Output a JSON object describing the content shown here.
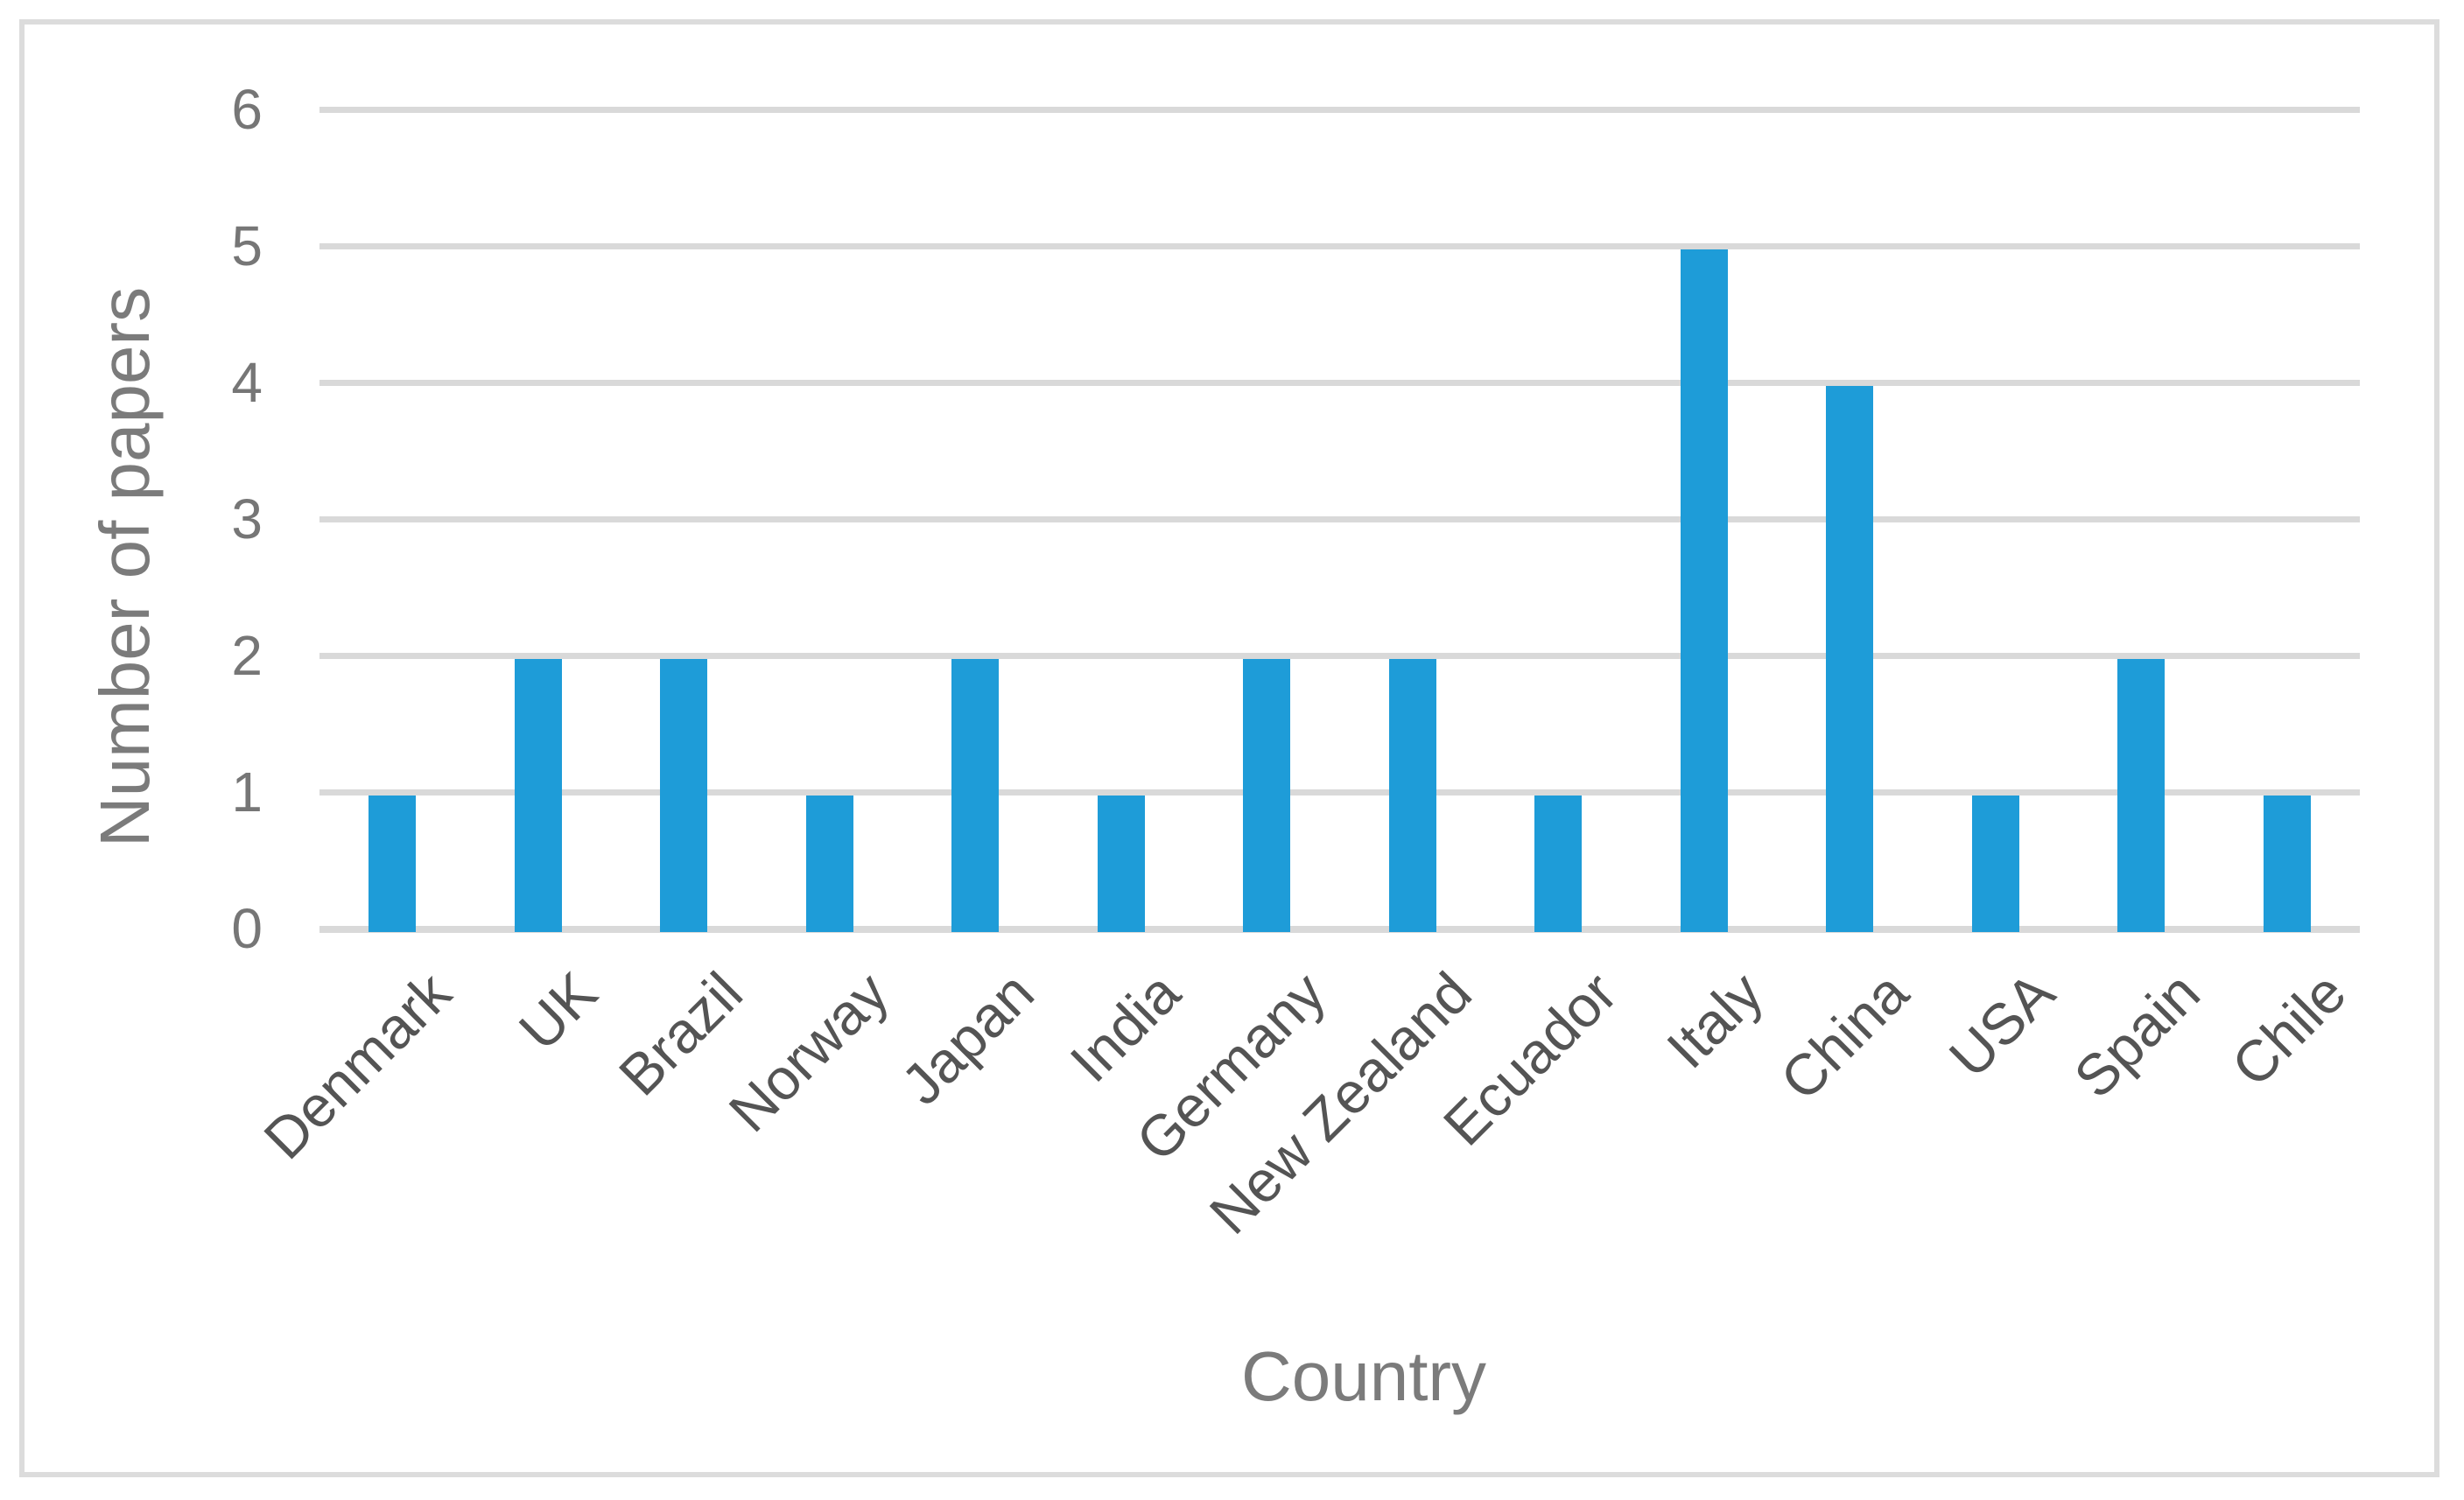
{
  "chart_data": {
    "type": "bar",
    "title": "",
    "xlabel": "Country",
    "ylabel": "Number of papers",
    "categories": [
      "Denmark",
      "UK",
      "Brazil",
      "Norway",
      "Japan",
      "India",
      "Germany",
      "New Zealand",
      "Ecuador",
      "Italy",
      "China",
      "USA",
      "Spain",
      "Chile"
    ],
    "values": [
      1,
      2,
      2,
      1,
      2,
      1,
      2,
      2,
      1,
      5,
      4,
      1,
      2,
      1
    ],
    "ylim": [
      0,
      6
    ],
    "yticks": [
      "0",
      "1",
      "2",
      "3",
      "4",
      "5",
      "6"
    ],
    "grid": true,
    "legend": false,
    "category_label_rotation_deg": -45,
    "colors": {
      "bar": "#1e9cd8",
      "gridline": "#d9d9d9",
      "tick_label": "#767676",
      "category_label": "#545454",
      "axis_title": "#7b7b7b",
      "frame_border": "#dcdcdc"
    }
  }
}
